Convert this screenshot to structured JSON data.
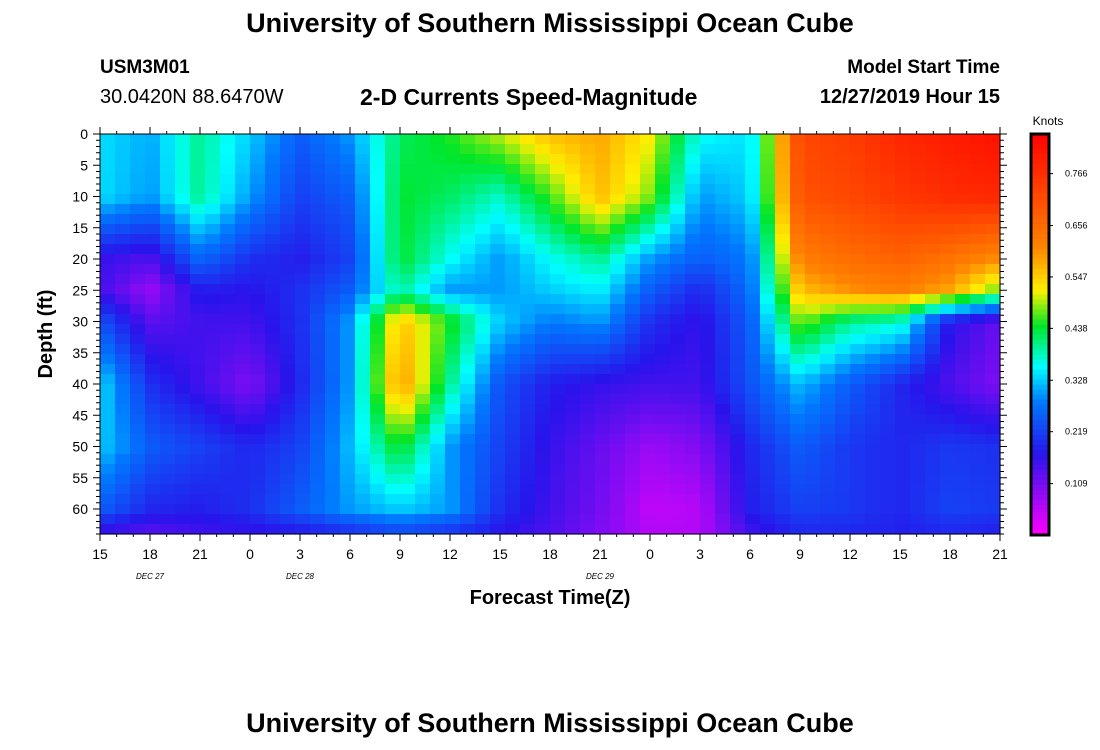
{
  "header": {
    "title": "University of Southern Mississippi Ocean Cube",
    "station_id": "USM3M01",
    "station_coords": "30.0420N 88.6470W",
    "subtitle": "2-D Currents Speed-Magnitude",
    "model_start_label": "Model Start Time",
    "model_start_value": "12/27/2019 Hour 15"
  },
  "footer": {
    "title": "University of Southern Mississippi Ocean Cube"
  },
  "chart_data": {
    "type": "heatmap",
    "title": "2-D Currents Speed-Magnitude",
    "xlabel": "Forecast Time(Z)",
    "ylabel": "Depth (ft)",
    "colorbar_label": "Knots",
    "x_tick_labels": [
      "15",
      "18",
      "21",
      "0",
      "3",
      "6",
      "9",
      "12",
      "15",
      "18",
      "21",
      "0",
      "3",
      "6",
      "9",
      "12",
      "15",
      "18",
      "21"
    ],
    "date_labels": [
      {
        "text": "DEC 27",
        "hour_index": 3
      },
      {
        "text": "DEC 28",
        "hour_index": 12
      },
      {
        "text": "DEC 29",
        "hour_index": 30
      }
    ],
    "x_range_hours": [
      0,
      54
    ],
    "y_ticks": [
      0,
      5,
      10,
      15,
      20,
      25,
      30,
      35,
      40,
      45,
      50,
      55,
      60
    ],
    "ylim": [
      0,
      64
    ],
    "y_inverted": true,
    "colorbar_ticks": [
      0.766,
      0.656,
      0.547,
      0.438,
      0.328,
      0.219,
      0.109
    ],
    "color_range": [
      0.0,
      0.85
    ],
    "grid": false,
    "value_grid": {
      "x_hours": [
        0,
        3,
        6,
        9,
        12,
        15,
        18,
        21,
        24,
        27,
        30,
        33,
        36,
        39,
        42,
        45,
        48,
        51,
        54
      ],
      "depths_ft": [
        0,
        10,
        20,
        25,
        30,
        40,
        50,
        60,
        64
      ],
      "values": [
        [
          0.34,
          0.31,
          0.4,
          0.33,
          0.25,
          0.3,
          0.42,
          0.45,
          0.5,
          0.56,
          0.58,
          0.52,
          0.36,
          0.34,
          0.72,
          0.74,
          0.78,
          0.8,
          0.82
        ],
        [
          0.34,
          0.3,
          0.4,
          0.3,
          0.22,
          0.25,
          0.44,
          0.42,
          0.38,
          0.46,
          0.56,
          0.48,
          0.3,
          0.33,
          0.7,
          0.72,
          0.75,
          0.77,
          0.78
        ],
        [
          0.16,
          0.14,
          0.26,
          0.2,
          0.18,
          0.22,
          0.44,
          0.36,
          0.3,
          0.36,
          0.4,
          0.3,
          0.25,
          0.28,
          0.62,
          0.65,
          0.67,
          0.64,
          0.6
        ],
        [
          0.15,
          0.08,
          0.18,
          0.17,
          0.2,
          0.25,
          0.4,
          0.3,
          0.3,
          0.33,
          0.35,
          0.25,
          0.19,
          0.27,
          0.56,
          0.6,
          0.62,
          0.58,
          0.47
        ],
        [
          0.24,
          0.13,
          0.15,
          0.15,
          0.2,
          0.3,
          0.56,
          0.45,
          0.33,
          0.28,
          0.3,
          0.2,
          0.16,
          0.25,
          0.48,
          0.4,
          0.38,
          0.17,
          0.12
        ],
        [
          0.34,
          0.2,
          0.15,
          0.1,
          0.19,
          0.3,
          0.6,
          0.4,
          0.24,
          0.18,
          0.16,
          0.15,
          0.15,
          0.24,
          0.32,
          0.25,
          0.19,
          0.14,
          0.1
        ],
        [
          0.33,
          0.25,
          0.22,
          0.19,
          0.22,
          0.32,
          0.45,
          0.3,
          0.22,
          0.16,
          0.12,
          0.08,
          0.1,
          0.19,
          0.25,
          0.21,
          0.19,
          0.21,
          0.2
        ],
        [
          0.25,
          0.19,
          0.18,
          0.2,
          0.25,
          0.3,
          0.33,
          0.3,
          0.2,
          0.15,
          0.11,
          0.05,
          0.06,
          0.18,
          0.22,
          0.21,
          0.19,
          0.22,
          0.21
        ],
        [
          0.15,
          0.13,
          0.15,
          0.16,
          0.17,
          0.19,
          0.22,
          0.2,
          0.17,
          0.14,
          0.1,
          0.06,
          0.06,
          0.15,
          0.19,
          0.19,
          0.18,
          0.19,
          0.18
        ]
      ]
    }
  }
}
